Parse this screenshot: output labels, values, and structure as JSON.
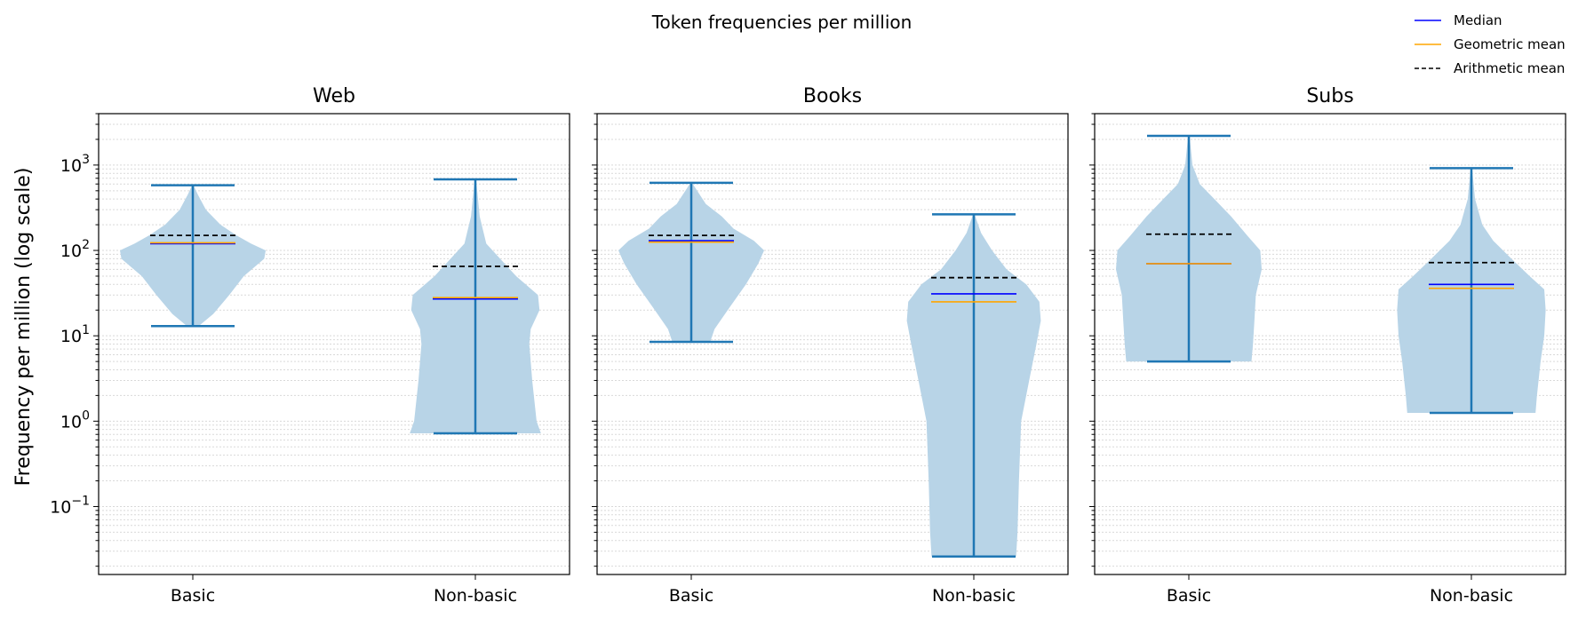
{
  "figure": {
    "title": "Token frequencies per million",
    "ylabel": "Frequency per million (log scale)"
  },
  "legend": {
    "placement": "top-right",
    "entries": [
      {
        "label": "Median",
        "color": "#0000ff",
        "style": "solid"
      },
      {
        "label": "Geometric mean",
        "color": "#ffa500",
        "style": "solid"
      },
      {
        "label": "Arithmetic mean",
        "color": "#000000",
        "style": "dashed"
      }
    ]
  },
  "colors": {
    "violin_fill": "#b8d4e7",
    "whisker": "#1f77b4",
    "grid": "#d9d9d9"
  },
  "chart_data": {
    "type": "violin",
    "y_scale": "log",
    "ylim": [
      0.016,
      4000
    ],
    "y_ticks": [
      {
        "value": 0.1,
        "base": "10",
        "exp": "−1"
      },
      {
        "value": 1,
        "base": "10",
        "exp": "0"
      },
      {
        "value": 10,
        "base": "10",
        "exp": "1"
      },
      {
        "value": 100,
        "base": "10",
        "exp": "2"
      },
      {
        "value": 1000,
        "base": "10",
        "exp": "3"
      }
    ],
    "grid": true,
    "categories": [
      "Basic",
      "Non-basic"
    ],
    "panels": [
      {
        "title": "Web",
        "violins": [
          {
            "category": "Basic",
            "min": 13,
            "max": 580,
            "median": 120,
            "geometric_mean": 123,
            "arithmetic_mean": 150,
            "density": [
              [
                13,
                0.08
              ],
              [
                18,
                0.28
              ],
              [
                30,
                0.5
              ],
              [
                50,
                0.7
              ],
              [
                80,
                0.98
              ],
              [
                100,
                1.0
              ],
              [
                120,
                0.8
              ],
              [
                150,
                0.6
              ],
              [
                200,
                0.38
              ],
              [
                300,
                0.18
              ],
              [
                450,
                0.07
              ],
              [
                580,
                0.01
              ]
            ]
          },
          {
            "category": "Non-basic",
            "min": 0.72,
            "max": 680,
            "median": 27,
            "geometric_mean": 28,
            "arithmetic_mean": 65,
            "density": [
              [
                0.72,
                0.9
              ],
              [
                1,
                0.84
              ],
              [
                3,
                0.78
              ],
              [
                8,
                0.74
              ],
              [
                12,
                0.76
              ],
              [
                20,
                0.88
              ],
              [
                30,
                0.86
              ],
              [
                50,
                0.56
              ],
              [
                80,
                0.34
              ],
              [
                120,
                0.15
              ],
              [
                250,
                0.06
              ],
              [
                680,
                0.01
              ]
            ]
          }
        ]
      },
      {
        "title": "Books",
        "violins": [
          {
            "category": "Basic",
            "min": 8.5,
            "max": 620,
            "median": 130,
            "geometric_mean": 125,
            "arithmetic_mean": 150,
            "density": [
              [
                8.5,
                0.26
              ],
              [
                12,
                0.32
              ],
              [
                20,
                0.5
              ],
              [
                40,
                0.75
              ],
              [
                70,
                0.92
              ],
              [
                100,
                1.0
              ],
              [
                130,
                0.86
              ],
              [
                180,
                0.58
              ],
              [
                250,
                0.42
              ],
              [
                350,
                0.2
              ],
              [
                500,
                0.08
              ],
              [
                620,
                0.01
              ]
            ]
          },
          {
            "category": "Non-basic",
            "min": 0.026,
            "max": 265,
            "median": 31,
            "geometric_mean": 25,
            "arithmetic_mean": 48,
            "density": [
              [
                0.026,
                0.58
              ],
              [
                0.05,
                0.6
              ],
              [
                0.2,
                0.62
              ],
              [
                1,
                0.65
              ],
              [
                3,
                0.76
              ],
              [
                8,
                0.86
              ],
              [
                15,
                0.92
              ],
              [
                25,
                0.9
              ],
              [
                40,
                0.72
              ],
              [
                60,
                0.45
              ],
              [
                100,
                0.25
              ],
              [
                160,
                0.1
              ],
              [
                265,
                0.01
              ]
            ]
          }
        ]
      },
      {
        "title": "Subs",
        "violins": [
          {
            "category": "Basic",
            "min": 5,
            "max": 2200,
            "median": 70,
            "geometric_mean": 70,
            "arithmetic_mean": 155,
            "density": [
              [
                5,
                0.86
              ],
              [
                8,
                0.88
              ],
              [
                15,
                0.9
              ],
              [
                30,
                0.92
              ],
              [
                60,
                1.0
              ],
              [
                100,
                0.98
              ],
              [
                150,
                0.8
              ],
              [
                250,
                0.58
              ],
              [
                400,
                0.35
              ],
              [
                600,
                0.15
              ],
              [
                1000,
                0.05
              ],
              [
                2200,
                0.01
              ]
            ]
          },
          {
            "category": "Non-basic",
            "min": 1.25,
            "max": 920,
            "median": 40,
            "geometric_mean": 36,
            "arithmetic_mean": 72,
            "density": [
              [
                1.25,
                0.88
              ],
              [
                2,
                0.9
              ],
              [
                5,
                0.95
              ],
              [
                10,
                1.0
              ],
              [
                20,
                1.02
              ],
              [
                35,
                1.0
              ],
              [
                50,
                0.8
              ],
              [
                80,
                0.55
              ],
              [
                130,
                0.3
              ],
              [
                200,
                0.15
              ],
              [
                400,
                0.05
              ],
              [
                920,
                0.01
              ]
            ]
          }
        ]
      }
    ]
  }
}
